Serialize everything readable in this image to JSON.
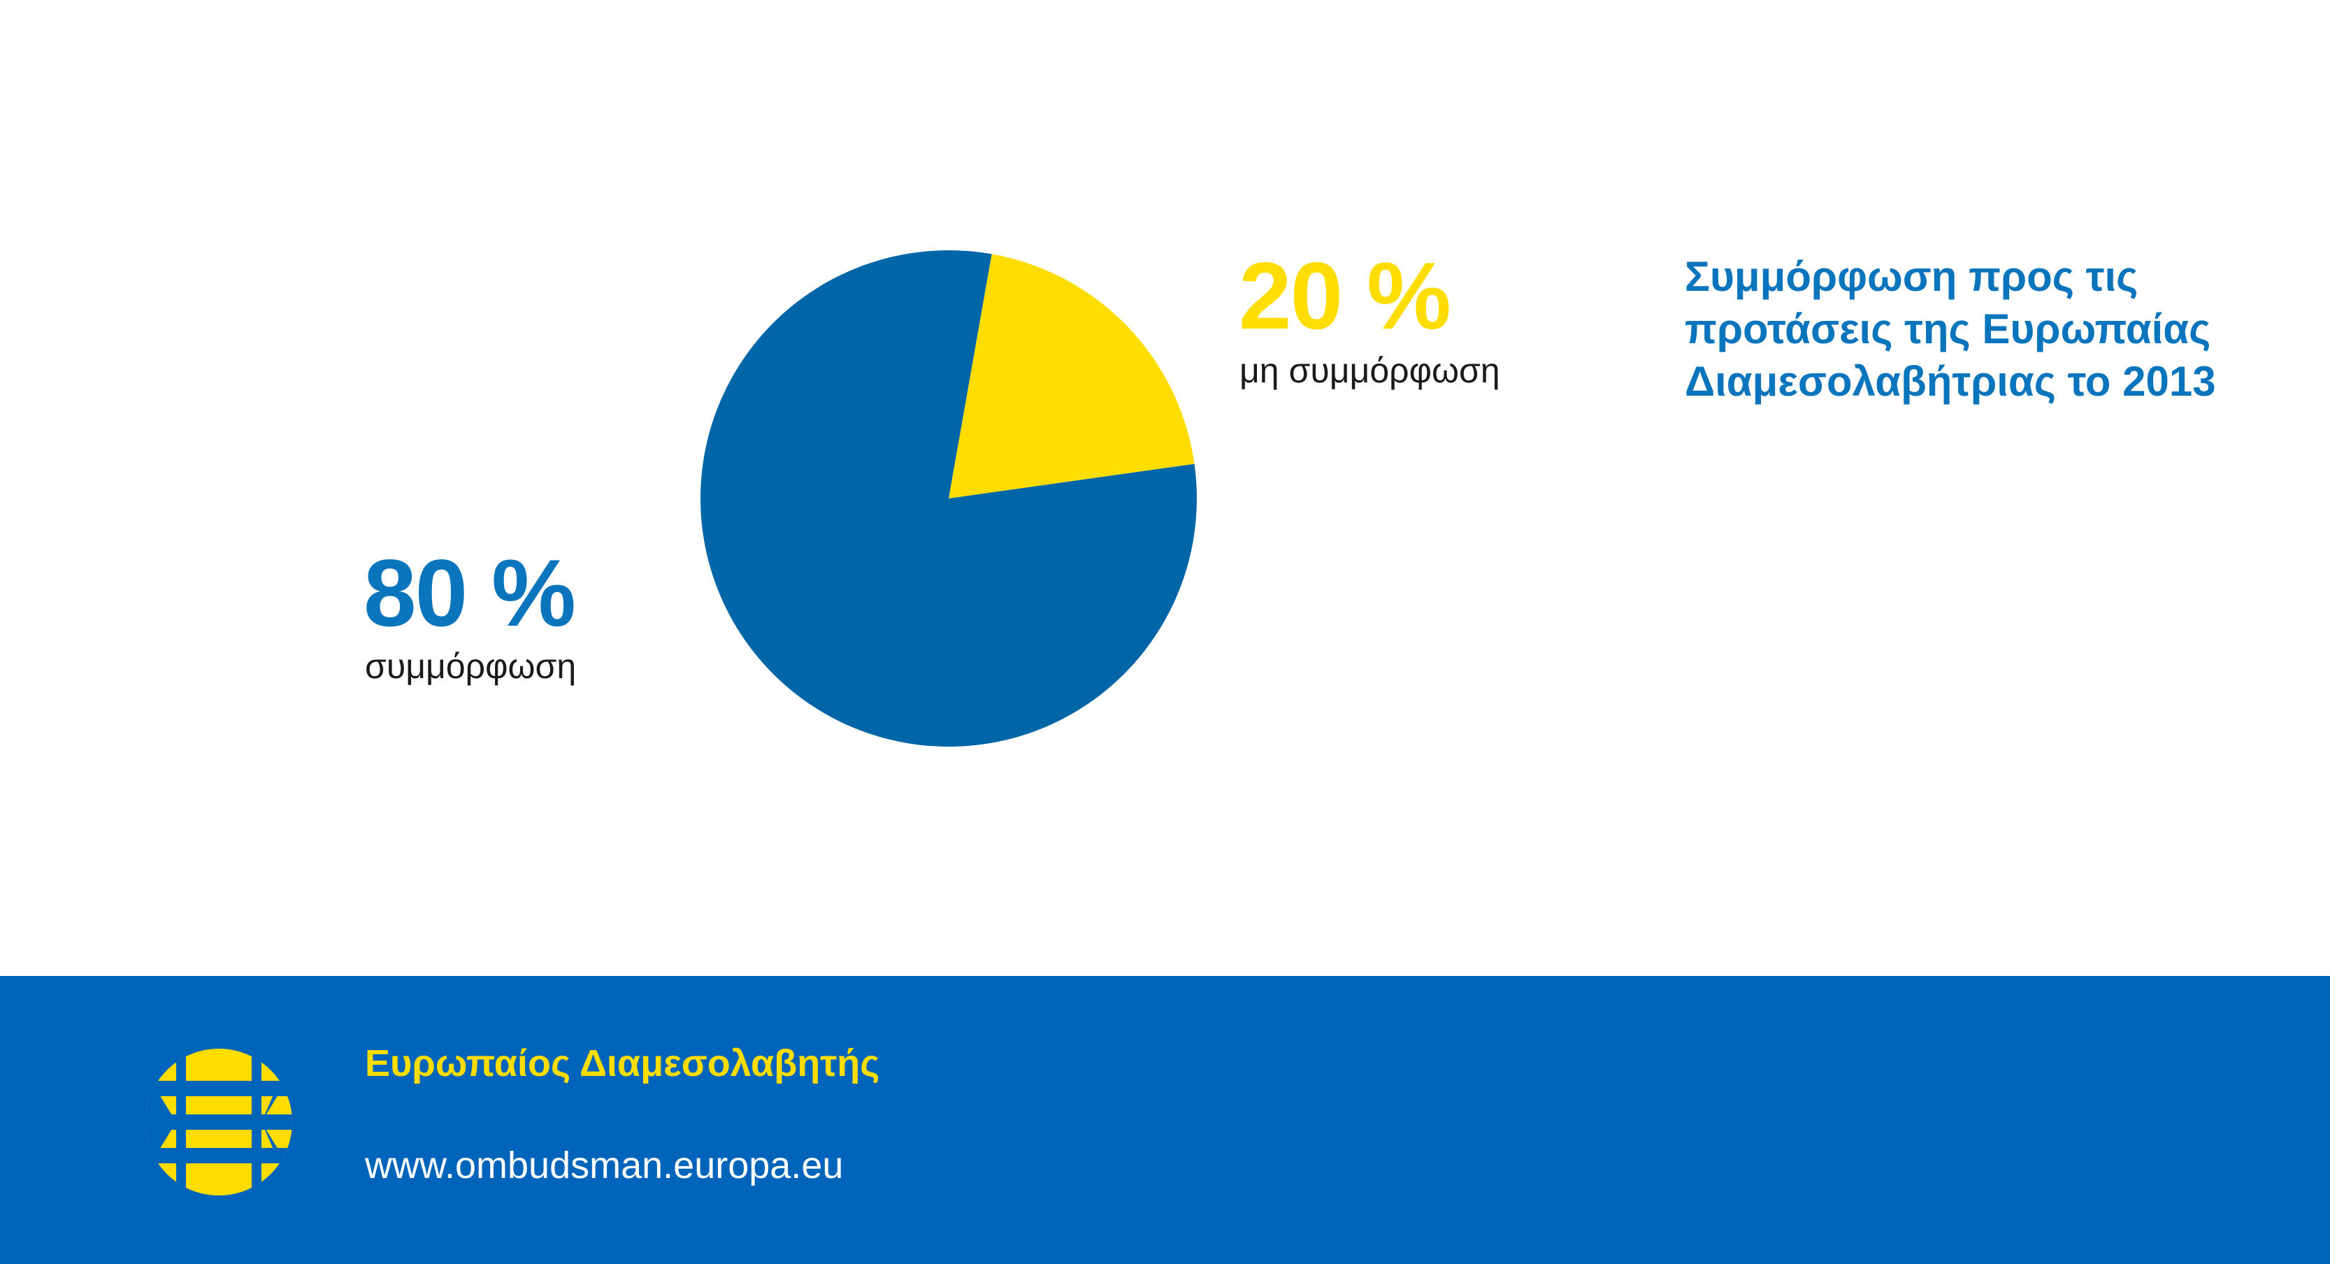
{
  "colors": {
    "primary_blue": "#0066a8",
    "footer_blue": "#0064bb",
    "yellow": "#ffdd00",
    "text_blue": "#0a74bd",
    "background": "#ffffff"
  },
  "chart_data": {
    "type": "pie",
    "title": "Συμμόρφωση προς τις προτάσεις της Ευρωπαίας Διαμεσολαβήτριας το 2013",
    "title_lines": [
      "Συμμόρφωση προς τις",
      "προτάσεις της Ευρωπαίας",
      "Διαμεσολαβήτριας το 2013"
    ],
    "slices": [
      {
        "label": "μη συμμόρφωση",
        "value": 20,
        "display": "20 %",
        "color": "#ffdd00"
      },
      {
        "label": "συμμόρφωση",
        "value": 80,
        "display": "80 %",
        "color": "#0066a8"
      }
    ]
  },
  "footer": {
    "org_name": "Ευρωπαίος Διαμεσολαβητής",
    "website": "www.ombudsman.europa.eu",
    "logo_icon": "european-ombudsman-logo-icon"
  }
}
